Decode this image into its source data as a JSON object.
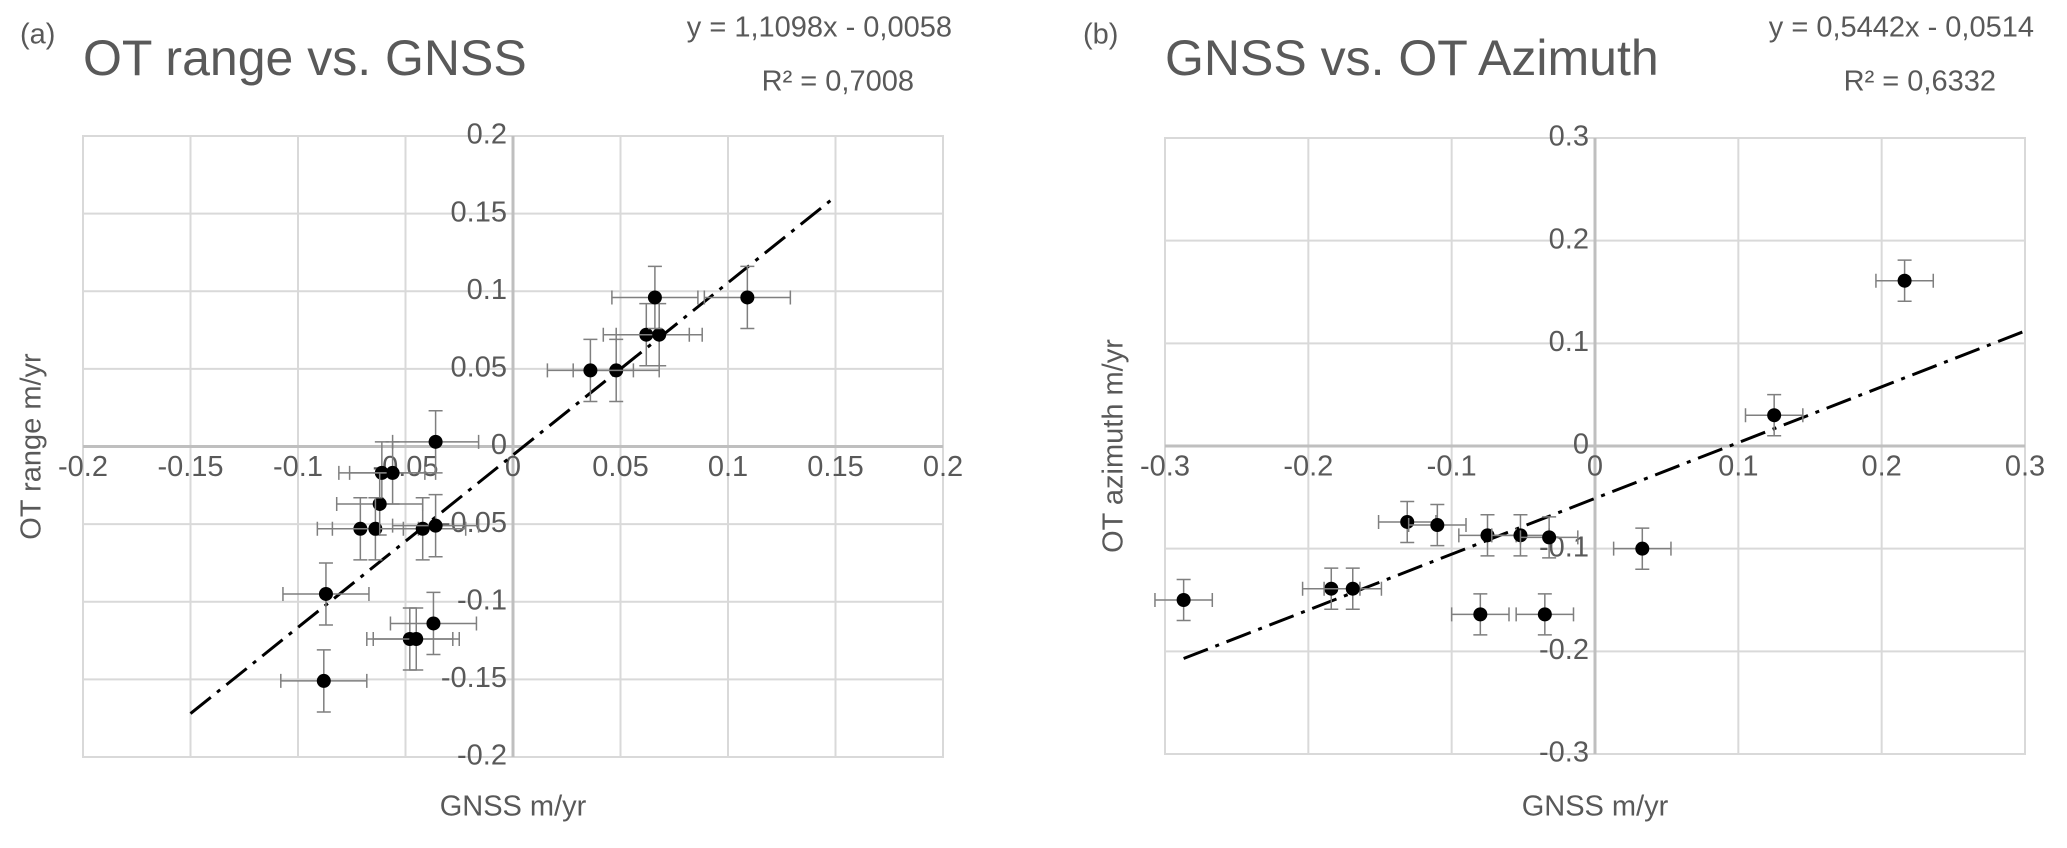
{
  "chart_data": [
    {
      "type": "scatter",
      "panel_label": "(a)",
      "title": "OT range vs. GNSS",
      "equation": "y = 1,1098x - 0,0058",
      "r_squared": "R² = 0,7008",
      "xlabel": "GNSS m/yr",
      "ylabel": "OT range  m/yr",
      "xlim": [
        -0.2,
        0.2
      ],
      "ylim": [
        -0.2,
        0.2
      ],
      "xticks": [
        -0.2,
        -0.15,
        -0.1,
        -0.05,
        0,
        0.05,
        0.1,
        0.15,
        0.2
      ],
      "yticks": [
        -0.2,
        -0.15,
        -0.1,
        -0.05,
        0,
        0.05,
        0.1,
        0.15,
        0.2
      ],
      "grid": true,
      "color": "#000000",
      "x": [
        0.048,
        0.036,
        0.062,
        0.068,
        0.066,
        0.109,
        -0.036,
        -0.061,
        -0.056,
        -0.062,
        -0.071,
        -0.064,
        -0.042,
        -0.036,
        -0.087,
        -0.037,
        -0.048,
        -0.045,
        -0.088
      ],
      "values": [
        0.049,
        0.049,
        0.072,
        0.072,
        0.096,
        0.096,
        0.003,
        -0.017,
        -0.017,
        -0.037,
        -0.053,
        -0.053,
        -0.053,
        -0.051,
        -0.095,
        -0.114,
        -0.124,
        -0.124,
        -0.151
      ],
      "x_err": [
        0.02,
        0.02,
        0.02,
        0.02,
        0.02,
        0.02,
        0.02,
        0.02,
        0.02,
        0.02,
        0.02,
        0.02,
        0.02,
        0.02,
        0.02,
        0.02,
        0.02,
        0.02,
        0.02
      ],
      "y_err": [
        0.02,
        0.02,
        0.02,
        0.02,
        0.02,
        0.02,
        0.02,
        0.02,
        0.02,
        0.02,
        0.02,
        0.02,
        0.02,
        0.02,
        0.02,
        0.02,
        0.02,
        0.02,
        0.02
      ],
      "trendline": {
        "x": [
          -0.15,
          0.15
        ],
        "y": [
          -0.172,
          0.161
        ]
      }
    },
    {
      "type": "scatter",
      "panel_label": "(b)",
      "title": "GNSS vs. OT Azimuth",
      "equation": "y = 0,5442x - 0,0514",
      "r_squared": "R² = 0,6332",
      "xlabel": "GNSS m/yr",
      "ylabel": "OT azimuth m/yr",
      "xlim": [
        -0.3,
        0.3
      ],
      "ylim": [
        -0.3,
        0.3
      ],
      "xticks": [
        -0.3,
        -0.2,
        -0.1,
        0,
        0.1,
        0.2,
        0.3
      ],
      "yticks": [
        -0.3,
        -0.2,
        -0.1,
        0,
        0.1,
        0.2,
        0.3
      ],
      "grid": true,
      "color": "#000000",
      "x": [
        -0.287,
        -0.184,
        -0.169,
        -0.131,
        -0.11,
        -0.075,
        -0.052,
        -0.032,
        -0.08,
        -0.035,
        0.033,
        0.125,
        0.216
      ],
      "values": [
        -0.15,
        -0.139,
        -0.139,
        -0.074,
        -0.077,
        -0.087,
        -0.087,
        -0.089,
        -0.164,
        -0.164,
        -0.1,
        0.03,
        0.161
      ],
      "x_err": [
        0.02,
        0.02,
        0.02,
        0.02,
        0.02,
        0.02,
        0.02,
        0.02,
        0.02,
        0.02,
        0.02,
        0.02,
        0.02
      ],
      "y_err": [
        0.02,
        0.02,
        0.02,
        0.02,
        0.02,
        0.02,
        0.02,
        0.02,
        0.02,
        0.02,
        0.02,
        0.02,
        0.02
      ],
      "trendline": {
        "x": [
          -0.287,
          0.3
        ],
        "y": [
          -0.207,
          0.112
        ]
      }
    }
  ]
}
